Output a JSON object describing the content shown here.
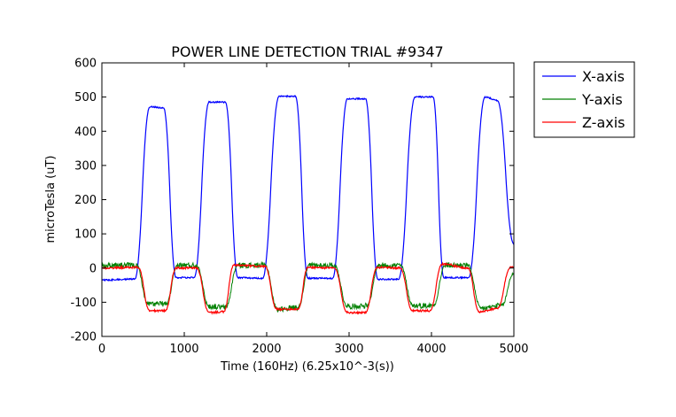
{
  "chart_data": {
    "type": "line",
    "title": "POWER LINE DETECTION TRIAL #9347",
    "xlabel": "Time (160Hz) (6.25x10^-3(s))",
    "ylabel": "microTesla (uT)",
    "xlim": [
      0,
      5000
    ],
    "ylim": [
      -200,
      600
    ],
    "xticks": [
      0,
      1000,
      2000,
      3000,
      4000,
      5000
    ],
    "yticks": [
      -200,
      -100,
      0,
      100,
      200,
      300,
      400,
      500,
      600
    ],
    "grid": false,
    "legend": {
      "placement": "outside-top-right"
    },
    "series": [
      {
        "name": "X-axis",
        "color": "#0000ff",
        "base": -33,
        "noise": 2,
        "segments": [
          {
            "x": [
              0,
              400
            ],
            "y": [
              -35,
              -32
            ]
          },
          {
            "x": [
              400,
              580
            ],
            "y": [
              -32,
              470
            ]
          },
          {
            "x": [
              580,
              750
            ],
            "y": [
              472,
              468
            ]
          },
          {
            "x": [
              750,
              900
            ],
            "y": [
              468,
              -28
            ]
          },
          {
            "x": [
              900,
              1120
            ],
            "y": [
              -28,
              -28
            ]
          },
          {
            "x": [
              1120,
              1300
            ],
            "y": [
              -28,
              485
            ]
          },
          {
            "x": [
              1300,
              1500
            ],
            "y": [
              485,
              485
            ]
          },
          {
            "x": [
              1500,
              1650
            ],
            "y": [
              485,
              -28
            ]
          },
          {
            "x": [
              1650,
              1950
            ],
            "y": [
              -28,
              -30
            ]
          },
          {
            "x": [
              1950,
              2150
            ],
            "y": [
              -30,
              502
            ]
          },
          {
            "x": [
              2150,
              2350
            ],
            "y": [
              502,
              502
            ]
          },
          {
            "x": [
              2350,
              2500
            ],
            "y": [
              502,
              -30
            ]
          },
          {
            "x": [
              2500,
              2800
            ],
            "y": [
              -30,
              -30
            ]
          },
          {
            "x": [
              2800,
              2980
            ],
            "y": [
              -30,
              495
            ]
          },
          {
            "x": [
              2980,
              3200
            ],
            "y": [
              495,
              495
            ]
          },
          {
            "x": [
              3200,
              3350
            ],
            "y": [
              495,
              -33
            ]
          },
          {
            "x": [
              3350,
              3600
            ],
            "y": [
              -33,
              -33
            ]
          },
          {
            "x": [
              3600,
              3800
            ],
            "y": [
              -33,
              500
            ]
          },
          {
            "x": [
              3800,
              4020
            ],
            "y": [
              500,
              500
            ]
          },
          {
            "x": [
              4020,
              4150
            ],
            "y": [
              500,
              -28
            ]
          },
          {
            "x": [
              4150,
              4450
            ],
            "y": [
              -28,
              -28
            ]
          },
          {
            "x": [
              4450,
              4650
            ],
            "y": [
              -28,
              500
            ]
          },
          {
            "x": [
              4650,
              4800
            ],
            "y": [
              500,
              490
            ]
          },
          {
            "x": [
              4800,
              5000
            ],
            "y": [
              490,
              70
            ]
          }
        ]
      },
      {
        "name": "Y-axis",
        "color": "#008000",
        "noise": 8,
        "segments": [
          {
            "x": [
              0,
              420
            ],
            "y": [
              8,
              8
            ]
          },
          {
            "x": [
              420,
              560
            ],
            "y": [
              8,
              -105
            ]
          },
          {
            "x": [
              560,
              780
            ],
            "y": [
              -105,
              -105
            ]
          },
          {
            "x": [
              780,
              920
            ],
            "y": [
              -105,
              8
            ]
          },
          {
            "x": [
              920,
              1150
            ],
            "y": [
              8,
              8
            ]
          },
          {
            "x": [
              1150,
              1300
            ],
            "y": [
              8,
              -112
            ]
          },
          {
            "x": [
              1300,
              1500
            ],
            "y": [
              -112,
              -115
            ]
          },
          {
            "x": [
              1500,
              1650
            ],
            "y": [
              -115,
              8
            ]
          },
          {
            "x": [
              1650,
              1980
            ],
            "y": [
              8,
              8
            ]
          },
          {
            "x": [
              1980,
              2130
            ],
            "y": [
              8,
              -120
            ]
          },
          {
            "x": [
              2130,
              2380
            ],
            "y": [
              -120,
              -115
            ]
          },
          {
            "x": [
              2380,
              2520
            ],
            "y": [
              -115,
              8
            ]
          },
          {
            "x": [
              2520,
              2820
            ],
            "y": [
              8,
              8
            ]
          },
          {
            "x": [
              2820,
              2980
            ],
            "y": [
              8,
              -112
            ]
          },
          {
            "x": [
              2980,
              3220
            ],
            "y": [
              -112,
              -110
            ]
          },
          {
            "x": [
              3220,
              3360
            ],
            "y": [
              -110,
              8
            ]
          },
          {
            "x": [
              3360,
              3620
            ],
            "y": [
              8,
              8
            ]
          },
          {
            "x": [
              3620,
              3780
            ],
            "y": [
              8,
              -110
            ]
          },
          {
            "x": [
              3780,
              4020
            ],
            "y": [
              -110,
              -110
            ]
          },
          {
            "x": [
              4020,
              4170
            ],
            "y": [
              -110,
              8
            ]
          },
          {
            "x": [
              4170,
              4440
            ],
            "y": [
              8,
              8
            ]
          },
          {
            "x": [
              4440,
              4600
            ],
            "y": [
              8,
              -118
            ]
          },
          {
            "x": [
              4600,
              4850
            ],
            "y": [
              -118,
              -110
            ]
          },
          {
            "x": [
              4850,
              5000
            ],
            "y": [
              -110,
              -15
            ]
          }
        ]
      },
      {
        "name": "Z-axis",
        "color": "#ff0000",
        "noise": 3,
        "segments": [
          {
            "x": [
              0,
              440
            ],
            "y": [
              0,
              2
            ]
          },
          {
            "x": [
              440,
              580
            ],
            "y": [
              2,
              -125
            ]
          },
          {
            "x": [
              580,
              770
            ],
            "y": [
              -125,
              -125
            ]
          },
          {
            "x": [
              770,
              900
            ],
            "y": [
              -125,
              0
            ]
          },
          {
            "x": [
              900,
              1150
            ],
            "y": [
              0,
              0
            ]
          },
          {
            "x": [
              1150,
              1300
            ],
            "y": [
              0,
              -130
            ]
          },
          {
            "x": [
              1300,
              1480
            ],
            "y": [
              -130,
              -128
            ]
          },
          {
            "x": [
              1480,
              1600
            ],
            "y": [
              -128,
              8
            ]
          },
          {
            "x": [
              1600,
              1980
            ],
            "y": [
              8,
              5
            ]
          },
          {
            "x": [
              1980,
              2120
            ],
            "y": [
              5,
              -120
            ]
          },
          {
            "x": [
              2120,
              2380
            ],
            "y": [
              -120,
              -120
            ]
          },
          {
            "x": [
              2380,
              2500
            ],
            "y": [
              -120,
              2
            ]
          },
          {
            "x": [
              2500,
              2820
            ],
            "y": [
              2,
              0
            ]
          },
          {
            "x": [
              2820,
              2980
            ],
            "y": [
              0,
              -130
            ]
          },
          {
            "x": [
              2980,
              3200
            ],
            "y": [
              -130,
              -130
            ]
          },
          {
            "x": [
              3200,
              3340
            ],
            "y": [
              -130,
              2
            ]
          },
          {
            "x": [
              3340,
              3620
            ],
            "y": [
              2,
              0
            ]
          },
          {
            "x": [
              3620,
              3770
            ],
            "y": [
              0,
              -125
            ]
          },
          {
            "x": [
              3770,
              3980
            ],
            "y": [
              -125,
              -125
            ]
          },
          {
            "x": [
              3980,
              4130
            ],
            "y": [
              -125,
              12
            ]
          },
          {
            "x": [
              4130,
              4440
            ],
            "y": [
              12,
              0
            ]
          },
          {
            "x": [
              4440,
              4580
            ],
            "y": [
              0,
              -128
            ]
          },
          {
            "x": [
              4580,
              4800
            ],
            "y": [
              -128,
              -118
            ]
          },
          {
            "x": [
              4800,
              4960
            ],
            "y": [
              -118,
              2
            ]
          },
          {
            "x": [
              4960,
              5000
            ],
            "y": [
              2,
              2
            ]
          }
        ]
      }
    ]
  }
}
